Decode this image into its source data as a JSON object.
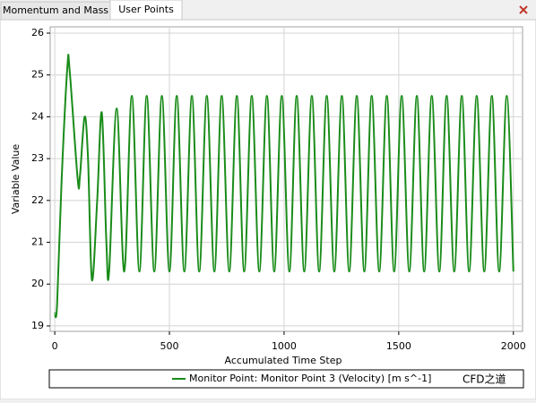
{
  "tabs": [
    "Momentum and Mass",
    "User Points"
  ],
  "watermark": "CFD之道",
  "chart_data": {
    "type": "line",
    "xlabel": "Accumulated Time Step",
    "ylabel": "Variable Value",
    "x": [
      0,
      10,
      30,
      55,
      65,
      100,
      110,
      130,
      145,
      162,
      185,
      205,
      225,
      237,
      270,
      303,
      336,
      369,
      401,
      434,
      467,
      500,
      532,
      565,
      598,
      630,
      663,
      696,
      728,
      761,
      794,
      826,
      859,
      892,
      925,
      957,
      990,
      1023,
      1055,
      1088,
      1121,
      1153,
      1186,
      1219,
      1252,
      1284,
      1317,
      1350,
      1382,
      1415,
      1448,
      1480,
      1513,
      1546,
      1579,
      1611,
      1644,
      1677,
      1709,
      1742,
      1775,
      1807,
      1840,
      1873,
      1906,
      1938,
      1971,
      2000
    ],
    "series": [
      {
        "name": "Monitor Point: Monitor Point 3 (Velocity) [m s^-1]",
        "color": "#1a8c1a",
        "values": [
          19.3,
          19.5,
          22.5,
          25.2,
          25.1,
          22.5,
          22.6,
          24.0,
          23.0,
          20.1,
          22.0,
          24.1,
          21.0,
          20.3,
          24.2,
          20.3,
          24.5,
          20.3,
          24.5,
          20.3,
          24.5,
          20.3,
          24.5,
          20.3,
          24.5,
          20.3,
          24.5,
          20.3,
          24.5,
          20.3,
          24.5,
          20.3,
          24.5,
          20.3,
          24.5,
          20.3,
          24.5,
          20.3,
          24.5,
          20.3,
          24.5,
          20.3,
          24.5,
          20.3,
          24.5,
          20.3,
          24.5,
          20.3,
          24.5,
          20.3,
          24.5,
          20.3,
          24.5,
          20.3,
          24.5,
          20.3,
          24.5,
          20.3,
          24.5,
          20.3,
          24.5,
          20.3,
          24.5,
          20.3,
          24.5,
          20.3,
          24.5,
          20.3
        ]
      }
    ],
    "xlim": [
      -20,
      2040
    ],
    "ylim": [
      18.87,
      26.15
    ],
    "xticks": [
      0,
      500,
      1000,
      1500,
      2000
    ],
    "yticks": [
      19,
      20,
      21,
      22,
      23,
      24,
      25,
      26
    ],
    "grid": true
  }
}
